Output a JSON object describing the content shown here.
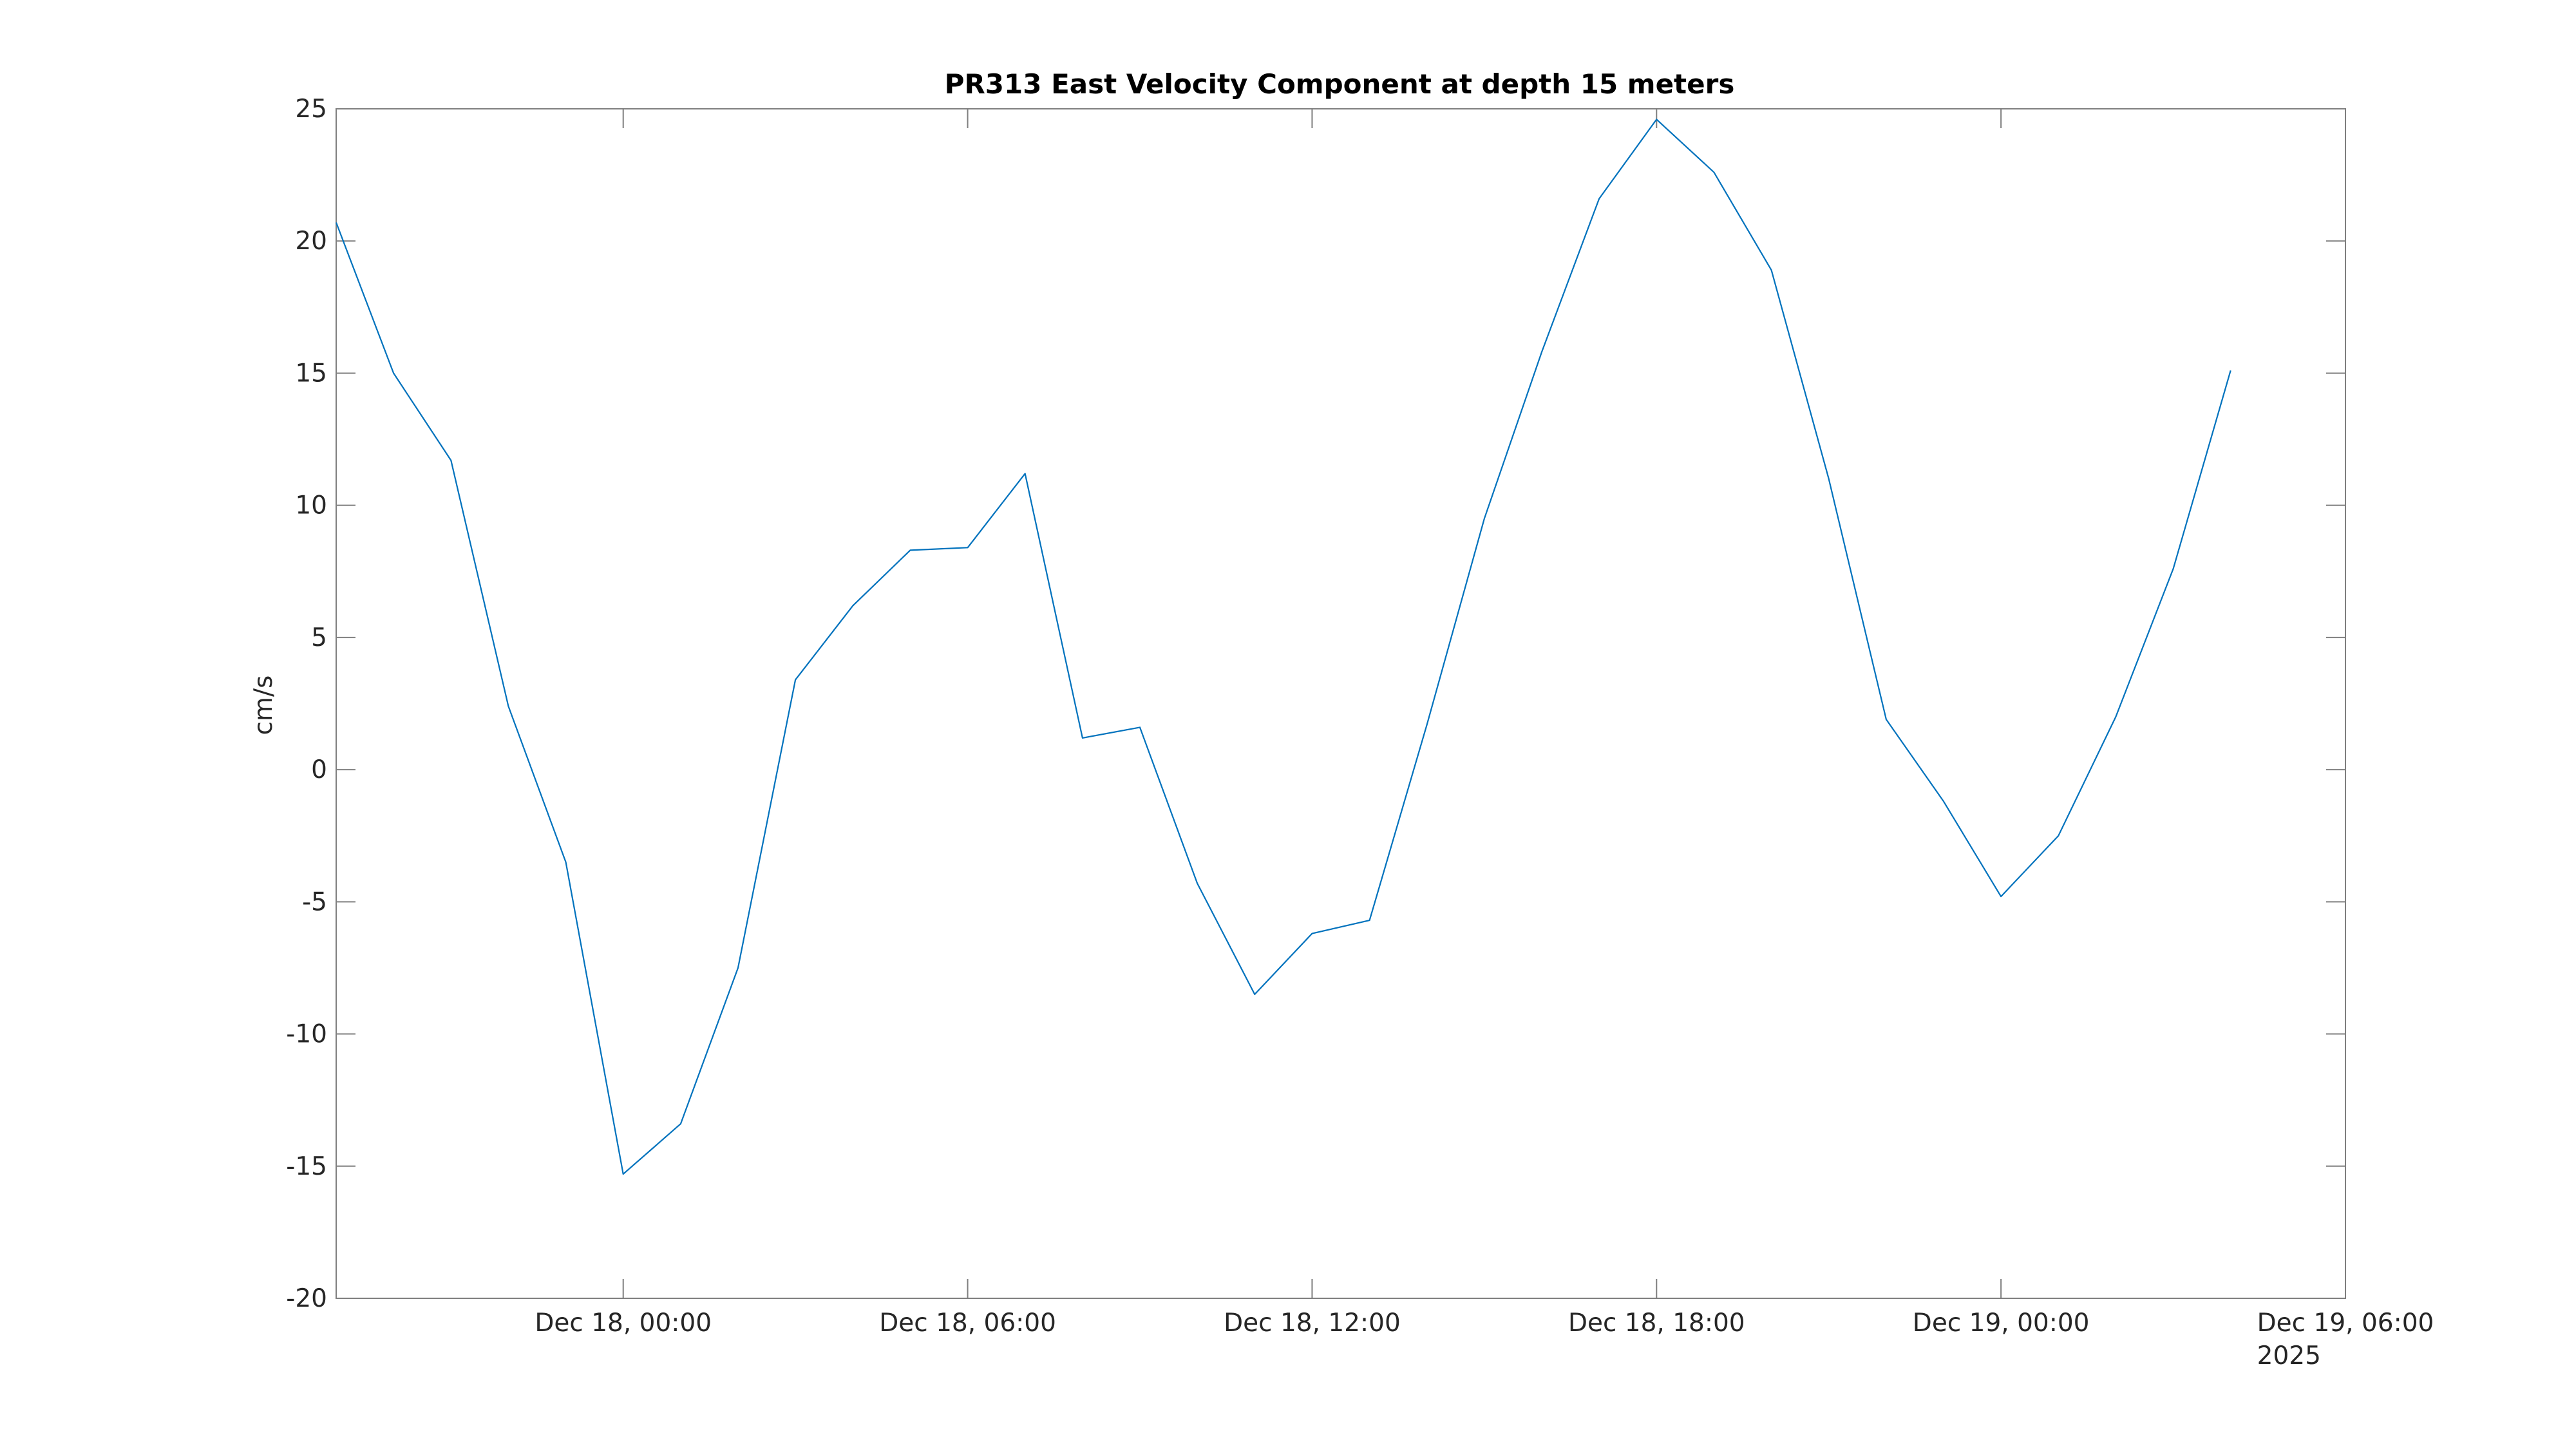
{
  "chart_data": {
    "type": "line",
    "title": "PR313 East Velocity Component at depth 15 meters",
    "xlabel": "",
    "ylabel": "cm/s",
    "x_axis": {
      "type": "time",
      "range": [
        "2025-12-17T19:00",
        "2025-12-19T06:00"
      ],
      "ticks": [
        "2025-12-18T00:00",
        "2025-12-18T06:00",
        "2025-12-18T12:00",
        "2025-12-18T18:00",
        "2025-12-19T00:00",
        "2025-12-19T06:00"
      ],
      "tick_labels": [
        "Dec 18, 00:00",
        "Dec 18, 06:00",
        "Dec 18, 12:00",
        "Dec 18, 18:00",
        "Dec 19, 00:00",
        "Dec 19, 06:00"
      ],
      "secondary_label": "2025"
    },
    "ylim": [
      -20,
      25
    ],
    "yticks": [
      -20,
      -15,
      -10,
      -5,
      0,
      5,
      10,
      15,
      20,
      25
    ],
    "ytick_labels": [
      "-20",
      "-15",
      "-10",
      "-5",
      "0",
      "5",
      "10",
      "15",
      "20",
      "25"
    ],
    "grid": false,
    "series": [
      {
        "color": "#0072BD",
        "points": [
          {
            "x": "2025-12-17T19:00",
            "y": 20.7
          },
          {
            "x": "2025-12-17T20:00",
            "y": 15.0
          },
          {
            "x": "2025-12-17T21:00",
            "y": 11.7
          },
          {
            "x": "2025-12-17T22:00",
            "y": 2.4
          },
          {
            "x": "2025-12-17T23:00",
            "y": -3.5
          },
          {
            "x": "2025-12-18T00:00",
            "y": -15.3
          },
          {
            "x": "2025-12-18T01:00",
            "y": -13.4
          },
          {
            "x": "2025-12-18T02:00",
            "y": -7.5
          },
          {
            "x": "2025-12-18T03:00",
            "y": 3.4
          },
          {
            "x": "2025-12-18T04:00",
            "y": 6.2
          },
          {
            "x": "2025-12-18T05:00",
            "y": 8.3
          },
          {
            "x": "2025-12-18T06:00",
            "y": 8.4
          },
          {
            "x": "2025-12-18T07:00",
            "y": 11.2
          },
          {
            "x": "2025-12-18T08:00",
            "y": 1.2
          },
          {
            "x": "2025-12-18T09:00",
            "y": 1.6
          },
          {
            "x": "2025-12-18T10:00",
            "y": -4.3
          },
          {
            "x": "2025-12-18T11:00",
            "y": -8.5
          },
          {
            "x": "2025-12-18T12:00",
            "y": -6.2
          },
          {
            "x": "2025-12-18T13:00",
            "y": -5.7
          },
          {
            "x": "2025-12-18T14:00",
            "y": 1.7
          },
          {
            "x": "2025-12-18T15:00",
            "y": 9.5
          },
          {
            "x": "2025-12-18T16:00",
            "y": 15.8
          },
          {
            "x": "2025-12-18T17:00",
            "y": 21.6
          },
          {
            "x": "2025-12-18T18:00",
            "y": 24.6
          },
          {
            "x": "2025-12-18T19:00",
            "y": 22.6
          },
          {
            "x": "2025-12-18T20:00",
            "y": 18.9
          },
          {
            "x": "2025-12-18T21:00",
            "y": 11.0
          },
          {
            "x": "2025-12-18T22:00",
            "y": 1.9
          },
          {
            "x": "2025-12-18T23:00",
            "y": -1.2
          },
          {
            "x": "2025-12-19T00:00",
            "y": -4.8
          },
          {
            "x": "2025-12-19T01:00",
            "y": -2.5
          },
          {
            "x": "2025-12-19T02:00",
            "y": 2.0
          },
          {
            "x": "2025-12-19T03:00",
            "y": 7.6
          },
          {
            "x": "2025-12-19T04:00",
            "y": 15.1
          }
        ]
      }
    ]
  }
}
